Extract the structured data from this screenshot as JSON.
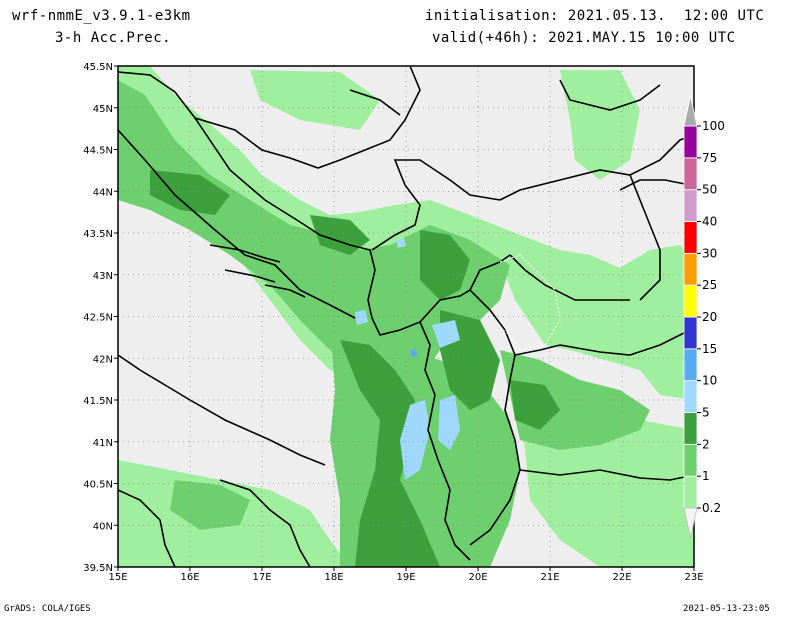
{
  "header": {
    "model": "wrf-nmmE_v3.9.1-e3km",
    "field": "3-h Acc.Prec.",
    "init": "initialisation: 2021.05.13.  12:00 UTC",
    "valid": "valid(+46h): 2021.MAY.15 10:00 UTC"
  },
  "footer": {
    "software": "GrADS: COLA/IGES",
    "timestamp": "2021-05-13-23:05"
  },
  "map": {
    "lon_range": [
      15,
      23
    ],
    "lat_range": [
      39.5,
      45.5
    ],
    "lon_ticks": [
      "15E",
      "16E",
      "17E",
      "18E",
      "19E",
      "20E",
      "21E",
      "22E",
      "23E"
    ],
    "lat_ticks": [
      "39.5N",
      "40N",
      "40.5N",
      "41N",
      "41.5N",
      "42N",
      "42.5N",
      "43N",
      "43.5N",
      "44N",
      "44.5N",
      "45N",
      "45.5N"
    ],
    "background_color": "#eeeeee",
    "grid": true
  },
  "colorbar": {
    "labels": [
      "0.2",
      "1",
      "2",
      "5",
      "10",
      "15",
      "20",
      "25",
      "30",
      "40",
      "50",
      "75",
      "100"
    ],
    "colors": [
      "#a0ef9f",
      "#6ecf6e",
      "#3ca03c",
      "#9fd9ff",
      "#5aabf5",
      "#3434d0",
      "#ffff00",
      "#ff9c00",
      "#ff0000",
      "#d09cd0",
      "#cc6699",
      "#9900a0",
      "#aaaaaa"
    ]
  }
}
